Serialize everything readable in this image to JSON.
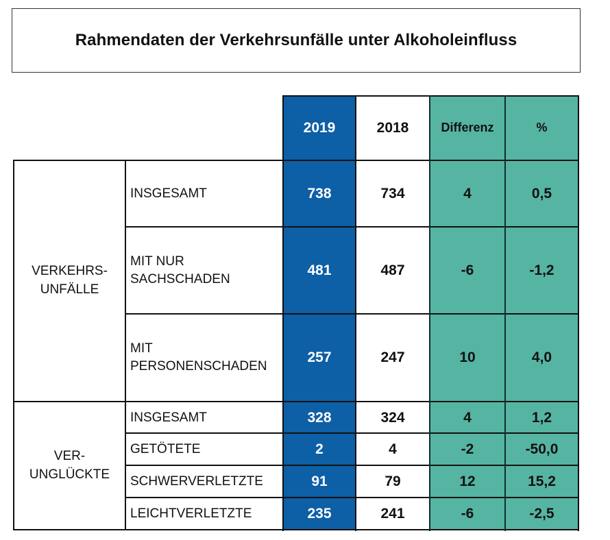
{
  "title": "Rahmendaten der Verkehrsunfälle unter Alkoholeinfluss",
  "header": {
    "col_2019": "2019",
    "col_2018": "2018",
    "col_diff": "Differenz",
    "col_pct": "%"
  },
  "groups": {
    "unfaelle": "VERKEHRS-\nUNFÄLLE",
    "verunglueckte": "VER-\nUNGLÜCKTE"
  },
  "rows": [
    {
      "label": "INSGESAMT",
      "v2019": "738",
      "v2018": "734",
      "diff": "4",
      "pct": "0,5"
    },
    {
      "label": "MIT NUR\nSACHSCHADEN",
      "v2019": "481",
      "v2018": "487",
      "diff": "-6",
      "pct": "-1,2"
    },
    {
      "label": "MIT\nPERSONENSCHADEN",
      "v2019": "257",
      "v2018": "247",
      "diff": "10",
      "pct": "4,0"
    },
    {
      "label": "INSGESAMT",
      "v2019": "328",
      "v2018": "324",
      "diff": "4",
      "pct": "1,2"
    },
    {
      "label": "GETÖTETE",
      "v2019": "2",
      "v2018": "4",
      "diff": "-2",
      "pct": "-50,0"
    },
    {
      "label": "SCHWERVERLETZTE",
      "v2019": "91",
      "v2018": "79",
      "diff": "12",
      "pct": "15,2"
    },
    {
      "label": "LEICHTVERLETZTE",
      "v2019": "235",
      "v2018": "241",
      "diff": "-6",
      "pct": "-2,5"
    }
  ],
  "colors": {
    "col_2019": "#0d5fa6",
    "teal": "#56b4a2"
  }
}
